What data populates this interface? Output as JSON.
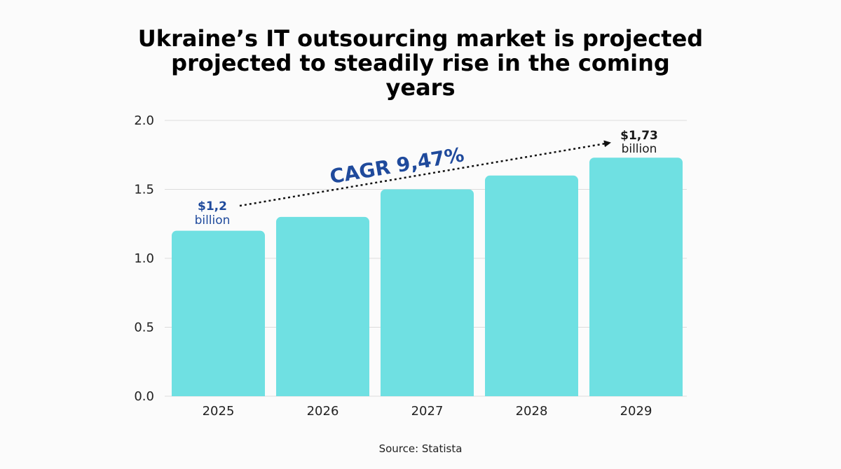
{
  "title_lines": [
    "Ukraine’s IT outsourcing market is projected",
    "projected to steadily rise in the coming",
    "years"
  ],
  "source": "Source: Statista",
  "colors": {
    "bar": "#6fe0e2",
    "accent_blue": "#1f4a9c",
    "dark_label": "#1a1a1a",
    "grid": "#dcdcdc"
  },
  "chart_data": {
    "type": "bar",
    "title": "Ukraine’s IT outsourcing market is projected projected to steadily rise in the coming years",
    "categories": [
      "2025",
      "2026",
      "2027",
      "2028",
      "2029"
    ],
    "values": [
      1.2,
      1.3,
      1.5,
      1.6,
      1.73
    ],
    "xlabel": "",
    "ylabel": "",
    "ylim": [
      0,
      2.0
    ],
    "yticks": [
      "0.0",
      "0.5",
      "1.0",
      "1.5",
      "2.0"
    ],
    "grid": true,
    "annotations": {
      "start_value": "$1,2",
      "start_unit": "billion",
      "end_value": "$1,73",
      "end_unit": "billion",
      "trend_label": "CAGR 9,47%"
    }
  }
}
